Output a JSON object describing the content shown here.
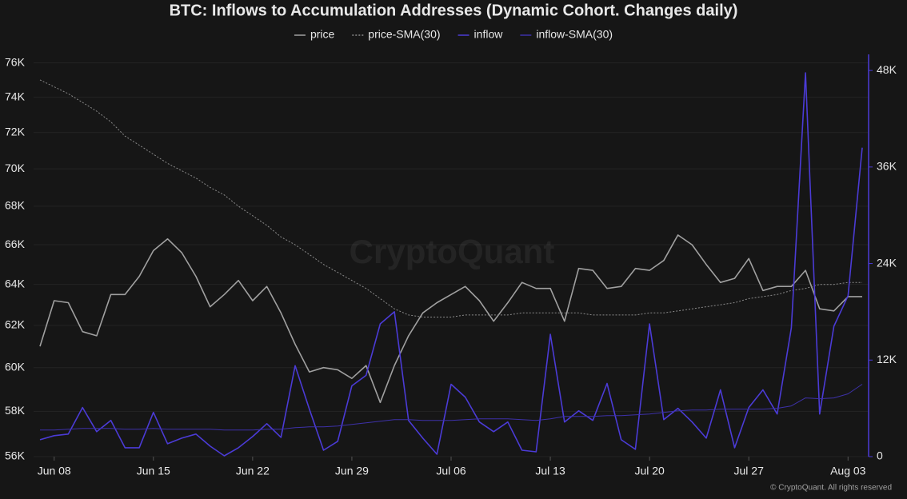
{
  "chart_data": {
    "type": "line",
    "title": "BTC: Inflows to Accumulation Addresses (Dynamic Cohort. Changes daily)",
    "watermark": "CryptoQuant",
    "copyright": "© CryptoQuant. All rights reserved",
    "x": [
      "Jun 07",
      "Jun 08",
      "Jun 09",
      "Jun 10",
      "Jun 11",
      "Jun 12",
      "Jun 13",
      "Jun 14",
      "Jun 15",
      "Jun 16",
      "Jun 17",
      "Jun 18",
      "Jun 19",
      "Jun 20",
      "Jun 21",
      "Jun 22",
      "Jun 23",
      "Jun 24",
      "Jun 25",
      "Jun 26",
      "Jun 27",
      "Jun 28",
      "Jun 29",
      "Jun 30",
      "Jul 01",
      "Jul 02",
      "Jul 03",
      "Jul 04",
      "Jul 05",
      "Jul 06",
      "Jul 07",
      "Jul 08",
      "Jul 09",
      "Jul 10",
      "Jul 11",
      "Jul 12",
      "Jul 13",
      "Jul 14",
      "Jul 15",
      "Jul 16",
      "Jul 17",
      "Jul 18",
      "Jul 19",
      "Jul 20",
      "Jul 21",
      "Jul 22",
      "Jul 23",
      "Jul 24",
      "Jul 25",
      "Jul 26",
      "Jul 27",
      "Jul 28",
      "Jul 29",
      "Jul 30",
      "Jul 31",
      "Aug 01",
      "Aug 02",
      "Aug 03",
      "Aug 04"
    ],
    "xticks": [
      "Jun 08",
      "Jun 15",
      "Jun 22",
      "Jun 29",
      "Jul 06",
      "Jul 13",
      "Jul 20",
      "Jul 27",
      "Aug 03"
    ],
    "ylim": [
      56000,
      76500
    ],
    "ylog": true,
    "yticks": [
      {
        "value": 56000,
        "label": "56K"
      },
      {
        "value": 58000,
        "label": "58K"
      },
      {
        "value": 60000,
        "label": "60K"
      },
      {
        "value": 62000,
        "label": "62K"
      },
      {
        "value": 64000,
        "label": "64K"
      },
      {
        "value": 66000,
        "label": "66K"
      },
      {
        "value": 68000,
        "label": "68K"
      },
      {
        "value": 70000,
        "label": "70K"
      },
      {
        "value": 72000,
        "label": "72K"
      },
      {
        "value": 74000,
        "label": "74K"
      },
      {
        "value": 76000,
        "label": "76K"
      }
    ],
    "y2lim": [
      0,
      50000
    ],
    "y2ticks": [
      0,
      {
        "value": 12000,
        "label": "12K"
      },
      {
        "value": 24000,
        "label": "24K"
      },
      {
        "value": 36000,
        "label": "36K"
      },
      {
        "value": 48000,
        "label": "48K"
      }
    ],
    "y2color": "#4b3bd6",
    "grid": true,
    "series": [
      {
        "name": "price",
        "color": "#a0a0a0",
        "style": "solid",
        "axis": "y",
        "values": [
          61000,
          63200,
          63100,
          61700,
          61500,
          63500,
          63500,
          64400,
          65700,
          66300,
          65600,
          64400,
          62900,
          63500,
          64200,
          63200,
          63900,
          62600,
          61100,
          59800,
          60000,
          59900,
          59500,
          60100,
          58400,
          60100,
          61500,
          62600,
          63100,
          63500,
          63900,
          63200,
          62200,
          63100,
          64100,
          63800,
          63800,
          62200,
          64800,
          64700,
          63800,
          63900,
          64800,
          64700,
          65200,
          66500,
          66000,
          65000,
          64100,
          64300,
          65300,
          63700,
          63900,
          63900,
          64700,
          62800,
          62700,
          63400,
          63400
        ]
      },
      {
        "name": "price-SMA(30)",
        "color": "#8a8a8a",
        "style": "dotted",
        "axis": "y",
        "values": [
          75000,
          74600,
          74200,
          73700,
          73200,
          72600,
          71800,
          71300,
          70800,
          70300,
          69900,
          69500,
          69000,
          68600,
          68000,
          67500,
          67000,
          66400,
          66000,
          65500,
          65000,
          64600,
          64200,
          63800,
          63300,
          62800,
          62500,
          62400,
          62400,
          62400,
          62500,
          62500,
          62500,
          62500,
          62600,
          62600,
          62600,
          62600,
          62600,
          62500,
          62500,
          62500,
          62500,
          62600,
          62600,
          62700,
          62800,
          62900,
          63000,
          63100,
          63300,
          63400,
          63500,
          63700,
          63800,
          64000,
          64000,
          64100,
          64100
        ]
      },
      {
        "name": "inflow",
        "color": "#4b3bd6",
        "style": "solid",
        "axis": "y2",
        "values": [
          2100,
          2600,
          2800,
          6100,
          3100,
          4500,
          1100,
          1100,
          5500,
          1600,
          2300,
          2800,
          1300,
          100,
          1100,
          2500,
          4100,
          2400,
          11300,
          5900,
          800,
          1900,
          8800,
          10100,
          16500,
          18000,
          4500,
          2300,
          300,
          9000,
          7400,
          4300,
          3100,
          4300,
          800,
          600,
          15200,
          4300,
          5700,
          4500,
          9100,
          2100,
          900,
          16500,
          4600,
          6000,
          4300,
          2300,
          8300,
          1100,
          6100,
          8300,
          5300,
          16000,
          47700,
          5300,
          16200,
          20000,
          38400
        ]
      },
      {
        "name": "inflow-SMA(30)",
        "color": "#3d31a8",
        "style": "solid",
        "axis": "y2",
        "values": [
          3300,
          3300,
          3400,
          3500,
          3500,
          3500,
          3400,
          3400,
          3500,
          3400,
          3400,
          3400,
          3400,
          3300,
          3300,
          3300,
          3400,
          3400,
          3600,
          3700,
          3700,
          3800,
          4000,
          4200,
          4400,
          4600,
          4600,
          4500,
          4500,
          4500,
          4600,
          4700,
          4700,
          4700,
          4600,
          4500,
          4700,
          5000,
          5000,
          5000,
          5100,
          5100,
          5200,
          5300,
          5500,
          5700,
          5800,
          5800,
          5900,
          5900,
          5900,
          5900,
          6000,
          6300,
          7300,
          7200,
          7300,
          7800,
          9000
        ]
      }
    ]
  }
}
